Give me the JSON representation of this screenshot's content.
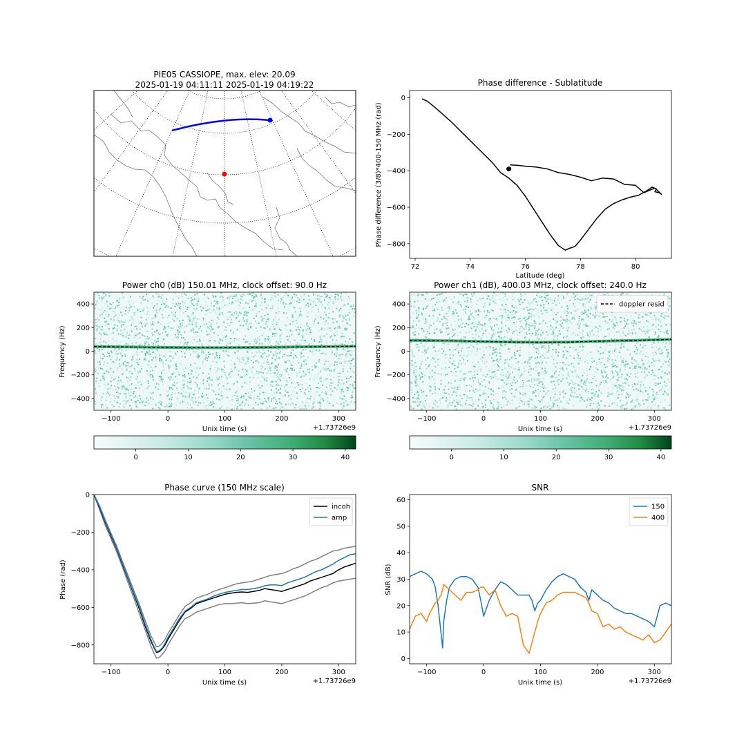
{
  "chart_data": [
    {
      "type": "map",
      "title": "PIE05 CASSIOPE, max. elev: 20.09",
      "subtitle": "2025-01-19 04:11:11 2025-01-19 04:19:22",
      "colors": {
        "track": "#0000ff",
        "station": "#ff0000",
        "coast": "#777777",
        "grid": "#000000"
      }
    },
    {
      "type": "line",
      "title": "Phase difference - Sublatitude",
      "xlabel": "Latitude (deg)",
      "ylabel": "Phase difference (3/8)*400-150 MHz (rad)",
      "xlim": [
        71.8,
        81.3
      ],
      "ylim": [
        -880,
        40
      ],
      "xticks": [
        72,
        74,
        76,
        78,
        80
      ],
      "yticks": [
        0,
        -200,
        -400,
        -600,
        -800
      ],
      "series": [
        {
          "color": "#000000",
          "x": [
            72.25,
            72.45,
            72.7,
            73.0,
            73.3,
            73.6,
            73.9,
            74.2,
            74.5,
            74.8,
            75.1,
            75.4,
            75.7,
            76.0,
            76.3,
            76.6,
            76.9,
            77.2,
            77.45,
            77.6,
            77.8,
            78.0,
            78.3,
            78.6,
            78.9,
            79.2,
            79.5,
            79.8,
            80.1,
            80.4,
            80.6,
            80.75,
            80.7,
            80.85,
            80.95
          ],
          "y": [
            -5,
            -20,
            -50,
            -90,
            -130,
            -175,
            -220,
            -265,
            -310,
            -355,
            -410,
            -440,
            -480,
            -540,
            -610,
            -680,
            -750,
            -810,
            -835,
            -825,
            -815,
            -780,
            -720,
            -660,
            -610,
            -580,
            -560,
            -545,
            -535,
            -510,
            -490,
            -500,
            -515,
            -520,
            -530
          ]
        },
        {
          "color": "#000000",
          "x": [
            80.95,
            80.7,
            80.3,
            80.0,
            79.6,
            79.2,
            78.8,
            78.4,
            78.0,
            77.6,
            77.2,
            76.8,
            76.4,
            76.0,
            75.7,
            75.45
          ],
          "y": [
            -530,
            -495,
            -520,
            -480,
            -475,
            -445,
            -440,
            -455,
            -435,
            -420,
            -410,
            -390,
            -380,
            -375,
            -370,
            -368
          ]
        }
      ],
      "points": [
        {
          "x": 75.4,
          "y": -390,
          "color": "#000000"
        }
      ]
    },
    {
      "type": "heatmap",
      "title": "Power ch0 (dB) 150.01 MHz, clock offset: 90.0 Hz",
      "xlabel": "Unix time (s)",
      "ylabel": "Frequency (Hz)",
      "offset_label": "+1.73726e9",
      "xlim": [
        -130,
        330
      ],
      "ylim": [
        -500,
        500
      ],
      "xticks": [
        -100,
        0,
        100,
        200,
        300
      ],
      "yticks": [
        400,
        200,
        0,
        -200,
        -400
      ],
      "colormap": "BuGn",
      "cbar_range": [
        -8,
        42
      ],
      "cbar_ticks": [
        0,
        10,
        20,
        30,
        40
      ],
      "doppler": {
        "x": [
          -130,
          -50,
          50,
          100,
          150,
          250,
          330
        ],
        "y": [
          40,
          35,
          30,
          30,
          32,
          38,
          42
        ]
      }
    },
    {
      "type": "heatmap",
      "title": "Power ch1 (dB), 400.03 MHz, clock offset: 240.0 Hz",
      "xlabel": "Unix time (s)",
      "ylabel": "Frequency (Hz)",
      "offset_label": "+1.73726e9",
      "xlim": [
        -130,
        330
      ],
      "ylim": [
        -500,
        500
      ],
      "xticks": [
        -100,
        0,
        100,
        200,
        300
      ],
      "yticks": [
        400,
        200,
        0,
        -200,
        -400
      ],
      "colormap": "BuGn",
      "cbar_range": [
        -8,
        42
      ],
      "cbar_ticks": [
        0,
        10,
        20,
        30,
        40
      ],
      "legend": [
        "doppler resid"
      ],
      "legend_loc": "top-right",
      "doppler": {
        "x": [
          -130,
          -50,
          0,
          50,
          100,
          150,
          200,
          250,
          330
        ],
        "y": [
          92,
          88,
          82,
          78,
          76,
          78,
          84,
          90,
          100
        ]
      }
    },
    {
      "type": "line",
      "title": "Phase curve (150 MHz scale)",
      "xlabel": "Unix time (s)",
      "ylabel": "Phase (rad)",
      "offset_label": "+1.73726e9",
      "xlim": [
        -130,
        330
      ],
      "ylim": [
        -900,
        0
      ],
      "xticks": [
        -100,
        0,
        100,
        200,
        300
      ],
      "yticks": [
        0,
        -200,
        -400,
        -600,
        -800
      ],
      "legend_loc": "top-right",
      "x": [
        -130,
        -120,
        -110,
        -100,
        -90,
        -80,
        -70,
        -60,
        -50,
        -40,
        -30,
        -25,
        -20,
        -15,
        -10,
        -5,
        0,
        10,
        20,
        30,
        40,
        50,
        60,
        70,
        80,
        90,
        100,
        110,
        120,
        130,
        140,
        150,
        160,
        170,
        180,
        190,
        200,
        210,
        220,
        230,
        240,
        250,
        260,
        270,
        280,
        290,
        300,
        310,
        320,
        330
      ],
      "series": [
        {
          "name": "incoh",
          "color": "#000000",
          "values": [
            0,
            -70,
            -150,
            -220,
            -290,
            -370,
            -450,
            -530,
            -610,
            -700,
            -780,
            -810,
            -840,
            -835,
            -820,
            -800,
            -770,
            -720,
            -670,
            -625,
            -605,
            -580,
            -570,
            -560,
            -550,
            -540,
            -530,
            -525,
            -520,
            -518,
            -520,
            -515,
            -510,
            -500,
            -505,
            -510,
            -515,
            -505,
            -495,
            -485,
            -475,
            -460,
            -450,
            -440,
            -430,
            -420,
            -400,
            -385,
            -375,
            -365
          ]
        },
        {
          "name": "amp",
          "color": "#1f77b4",
          "values": [
            0,
            -65,
            -145,
            -215,
            -285,
            -365,
            -445,
            -525,
            -600,
            -690,
            -770,
            -805,
            -835,
            -830,
            -815,
            -790,
            -760,
            -710,
            -660,
            -620,
            -600,
            -575,
            -565,
            -555,
            -540,
            -530,
            -520,
            -515,
            -510,
            -505,
            -505,
            -500,
            -495,
            -485,
            -480,
            -480,
            -485,
            -470,
            -460,
            -450,
            -440,
            -425,
            -410,
            -400,
            -385,
            -370,
            -350,
            -335,
            -320,
            -315
          ]
        },
        {
          "color": "#808080",
          "values": [
            0,
            -60,
            -135,
            -205,
            -275,
            -355,
            -430,
            -510,
            -585,
            -670,
            -750,
            -780,
            -810,
            -805,
            -790,
            -770,
            -740,
            -690,
            -640,
            -595,
            -575,
            -550,
            -540,
            -530,
            -515,
            -505,
            -495,
            -485,
            -475,
            -470,
            -465,
            -460,
            -450,
            -440,
            -430,
            -425,
            -420,
            -410,
            -395,
            -385,
            -370,
            -355,
            -345,
            -330,
            -315,
            -300,
            -295,
            -285,
            -280,
            -275
          ]
        },
        {
          "color": "#808080",
          "values": [
            0,
            -80,
            -165,
            -235,
            -305,
            -385,
            -470,
            -550,
            -635,
            -720,
            -805,
            -840,
            -870,
            -865,
            -850,
            -830,
            -800,
            -750,
            -700,
            -660,
            -645,
            -625,
            -615,
            -605,
            -595,
            -585,
            -580,
            -580,
            -578,
            -575,
            -580,
            -578,
            -575,
            -565,
            -570,
            -575,
            -580,
            -570,
            -560,
            -550,
            -540,
            -525,
            -510,
            -495,
            -485,
            -470,
            -460,
            -455,
            -450,
            -445
          ]
        }
      ]
    },
    {
      "type": "line",
      "title": "SNR",
      "xlabel": "Unix time (s)",
      "ylabel": "SNR (dB)",
      "offset_label": "+1.73726e9",
      "xlim": [
        -130,
        330
      ],
      "ylim": [
        -2,
        62
      ],
      "xticks": [
        -100,
        0,
        100,
        200,
        300
      ],
      "yticks": [
        0,
        10,
        20,
        30,
        40,
        50,
        60
      ],
      "legend_loc": "top-right",
      "x": [
        -130,
        -120,
        -110,
        -100,
        -95,
        -90,
        -85,
        -80,
        -75,
        -72,
        -70,
        -65,
        -60,
        -50,
        -40,
        -30,
        -20,
        -10,
        -5,
        0,
        10,
        20,
        30,
        40,
        50,
        60,
        70,
        80,
        85,
        90,
        95,
        100,
        110,
        120,
        130,
        140,
        150,
        160,
        170,
        180,
        185,
        190,
        200,
        210,
        220,
        230,
        240,
        250,
        260,
        270,
        280,
        290,
        300,
        310,
        320,
        330
      ],
      "series": [
        {
          "name": "150",
          "color": "#1f77b4",
          "values": [
            31,
            32,
            33,
            32,
            31,
            30,
            27,
            20,
            10,
            4,
            14,
            22,
            27,
            30,
            31,
            31,
            30,
            27,
            22,
            16,
            22,
            26,
            29,
            28,
            26,
            24,
            24,
            24,
            22,
            18,
            21,
            22,
            26,
            29,
            31,
            32,
            31,
            30,
            27,
            25,
            22,
            26,
            24,
            22,
            21,
            19,
            18,
            17,
            17,
            16,
            15,
            14,
            12,
            20,
            21,
            20
          ]
        },
        {
          "name": "400",
          "color": "#ff7f0e",
          "values": [
            11,
            16,
            17,
            14,
            17,
            19,
            21,
            22,
            24,
            26,
            28,
            27,
            26,
            24,
            22,
            25,
            25,
            26,
            27,
            27,
            24,
            26,
            20,
            16,
            17,
            16,
            5,
            2,
            6,
            10,
            14,
            17,
            21,
            22,
            24,
            25,
            25,
            25,
            24,
            23,
            21,
            18,
            17,
            12,
            13,
            11,
            12,
            10,
            9,
            8,
            7,
            9,
            6,
            7,
            10,
            13
          ]
        }
      ]
    }
  ]
}
